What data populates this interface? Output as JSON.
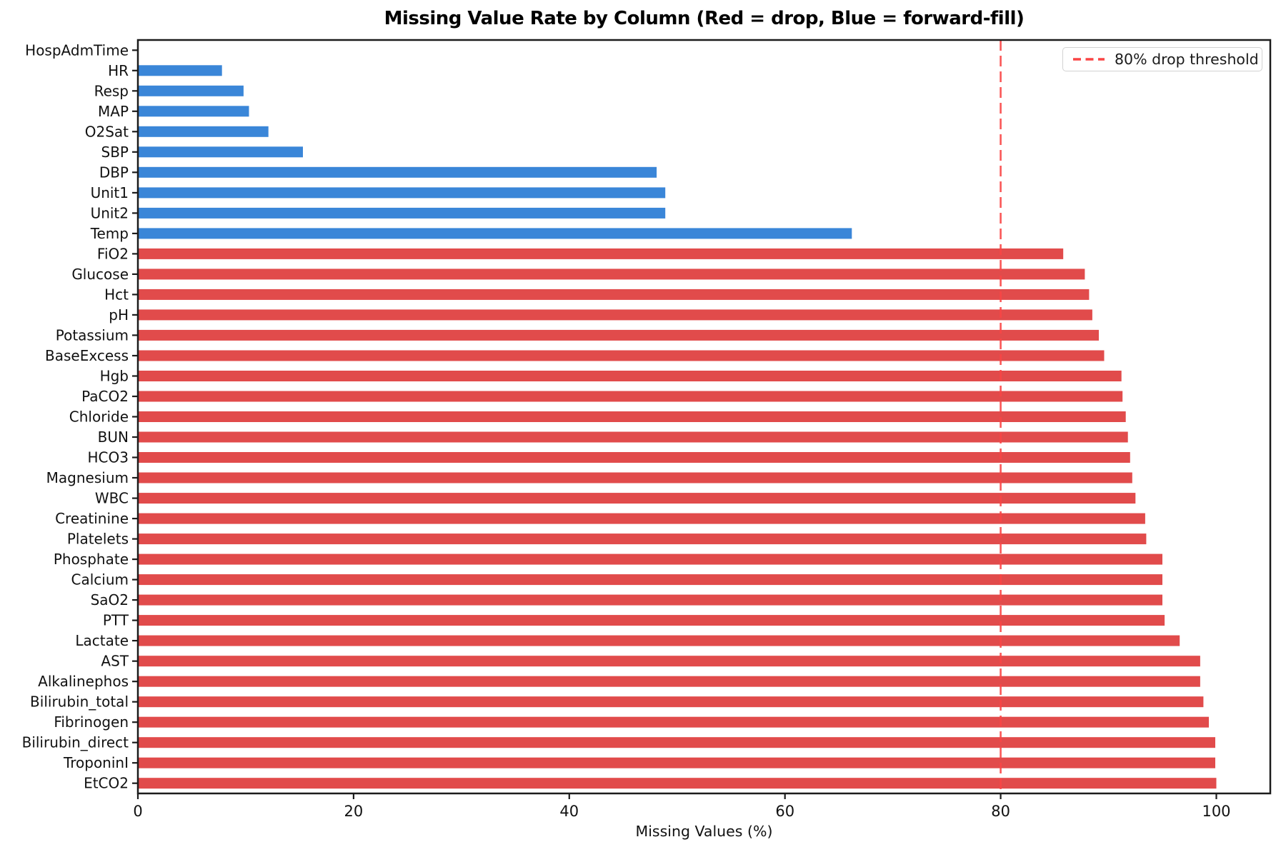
{
  "chart_data": {
    "type": "bar",
    "orientation": "horizontal",
    "title": "Missing Value Rate by Column (Red = drop, Blue = forward-fill)",
    "xlabel": "Missing Values (%)",
    "ylabel": "",
    "xlim": [
      0,
      105
    ],
    "xticks": [
      0,
      20,
      40,
      60,
      80,
      100
    ],
    "grid": false,
    "categories": [
      "HospAdmTime",
      "HR",
      "Resp",
      "MAP",
      "O2Sat",
      "SBP",
      "DBP",
      "Unit1",
      "Unit2",
      "Temp",
      "FiO2",
      "Glucose",
      "Hct",
      "pH",
      "Potassium",
      "BaseExcess",
      "Hgb",
      "PaCO2",
      "Chloride",
      "BUN",
      "HCO3",
      "Magnesium",
      "WBC",
      "Creatinine",
      "Platelets",
      "Phosphate",
      "Calcium",
      "SaO2",
      "PTT",
      "Lactate",
      "AST",
      "Alkalinephos",
      "Bilirubin_total",
      "Fibrinogen",
      "Bilirubin_direct",
      "TroponinI",
      "EtCO2"
    ],
    "values": [
      0.0,
      7.8,
      9.8,
      10.3,
      12.1,
      15.3,
      48.1,
      48.9,
      48.9,
      66.2,
      85.8,
      87.8,
      88.2,
      88.5,
      89.1,
      89.6,
      91.2,
      91.3,
      91.6,
      91.8,
      92.0,
      92.2,
      92.5,
      93.4,
      93.5,
      95.0,
      95.0,
      95.0,
      95.2,
      96.6,
      98.5,
      98.5,
      98.8,
      99.3,
      99.9,
      99.9,
      100.0
    ],
    "groups": [
      "forward-fill",
      "forward-fill",
      "forward-fill",
      "forward-fill",
      "forward-fill",
      "forward-fill",
      "forward-fill",
      "forward-fill",
      "forward-fill",
      "forward-fill",
      "drop",
      "drop",
      "drop",
      "drop",
      "drop",
      "drop",
      "drop",
      "drop",
      "drop",
      "drop",
      "drop",
      "drop",
      "drop",
      "drop",
      "drop",
      "drop",
      "drop",
      "drop",
      "drop",
      "drop",
      "drop",
      "drop",
      "drop",
      "drop",
      "drop",
      "drop",
      "drop"
    ],
    "group_colors": {
      "forward-fill": "#3a86d8",
      "drop": "#e14b4b"
    },
    "threshold_line": {
      "value": 80,
      "color": "#fa4545",
      "style": "dashed"
    },
    "legend": {
      "position": "upper right",
      "entries": [
        {
          "label": "80% drop threshold",
          "color": "#fa4545",
          "linestyle": "dashed"
        }
      ]
    },
    "axis_color": "#1c1c1c",
    "text_color": "#111111"
  }
}
